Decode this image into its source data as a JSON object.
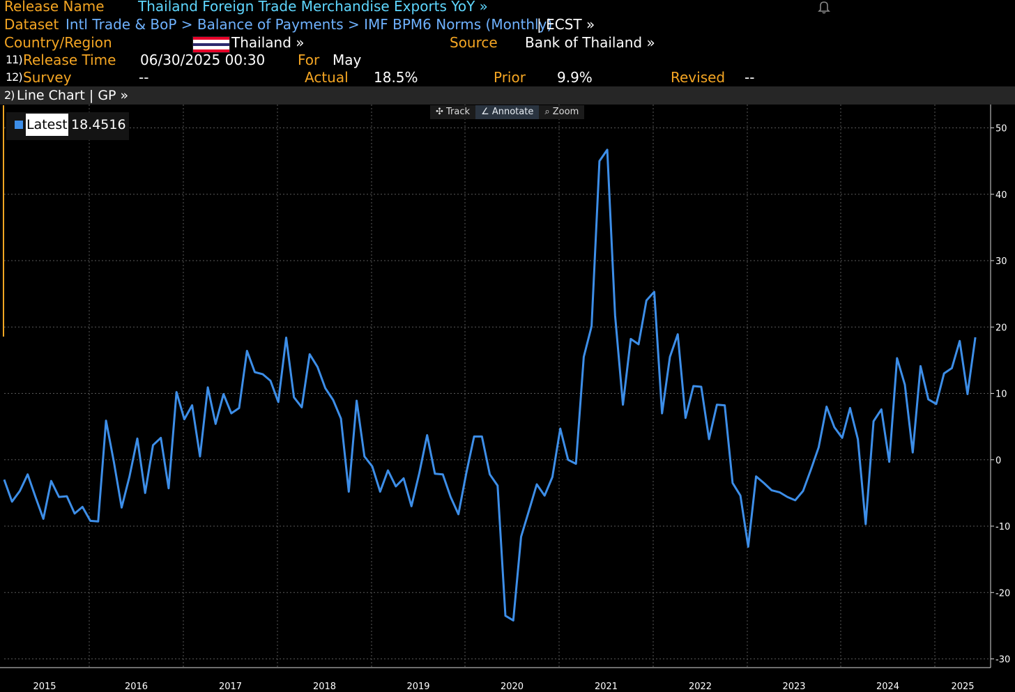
{
  "header": {
    "release_name_label": "Release Name",
    "release_name": "Thailand Foreign Trade Merchandise Exports YoY »",
    "dataset_label": "Dataset",
    "dataset_path": "Intl Trade & BoP > Balance of Payments > IMF BPM6 Norms (Monthly)",
    "dataset_suffix": "| ECST »",
    "country_label": "Country/Region",
    "country": "Thailand »",
    "source_label": "Source",
    "source": "Bank of Thailand »",
    "release_time_num": "11)",
    "release_time_label": "Release Time",
    "release_time": "06/30/2025 00:30",
    "for_label": "For",
    "for_value": "May",
    "survey_num": "12)",
    "survey_label": "Survey",
    "survey_value": "--",
    "actual_label": "Actual",
    "actual_value": "18.5%",
    "prior_label": "Prior",
    "prior_value": "9.9%",
    "revised_label": "Revised",
    "revised_value": "--"
  },
  "toolbar": {
    "num": "2)",
    "label": "Line Chart | GP »"
  },
  "tools": {
    "track": "Track",
    "annotate": "Annotate",
    "zoom": "Zoom"
  },
  "legend": {
    "label": "Latest",
    "value": "18.4516"
  },
  "colors": {
    "line": "#3d8ee8",
    "accent": "#f5a623",
    "flag_red": "#e8002a",
    "flag_blue": "#2d2a4a"
  },
  "chart_data": {
    "type": "line",
    "series": [
      {
        "name": "Latest",
        "start": "2015-01",
        "values": [
          -3,
          -6.3,
          -4.7,
          -2.2,
          -5.6,
          -8.9,
          -3.2,
          -5.6,
          -5.5,
          -8.1,
          -7.1,
          -9.2,
          -9.3,
          5.9,
          -0.3,
          -7.2,
          -2.5,
          3.2,
          -5,
          2.2,
          3.3,
          -4.3,
          10.2,
          6.1,
          8.2,
          0.5,
          10.9,
          5.4,
          9.9,
          7,
          7.8,
          16.4,
          13.2,
          12.9,
          11.9,
          8.7,
          18.4,
          9.4,
          7.9,
          15.9,
          14,
          10.8,
          9,
          6.2,
          -4.8,
          8.9,
          0.5,
          -1,
          -4.8,
          -1.6,
          -4,
          -2.8,
          -7,
          -2,
          3.7,
          -2.1,
          -2.2,
          -5.6,
          -8.2,
          -2,
          3.5,
          3.5,
          -2.2,
          -3.9,
          -23.5,
          -24.2,
          -11.6,
          -7.7,
          -3.7,
          -5.4,
          -2.6,
          4.7,
          0,
          -0.6,
          15.5,
          20.1,
          45,
          46.7,
          21.8,
          8.3,
          18.2,
          17.4,
          24,
          25.3,
          7,
          15.5,
          18.9,
          6.3,
          11.1,
          11,
          3.1,
          8.3,
          8.2,
          -3.5,
          -5.4,
          -13.1,
          -2.5,
          -3.5,
          -4.6,
          -4.9,
          -5.6,
          -6.1,
          -4.7,
          -1.5,
          1.9,
          8,
          4.9,
          3.3,
          7.8,
          3.1,
          -9.7,
          5.8,
          7.6,
          -0.3,
          15.3,
          11.3,
          1.1,
          14.1,
          9.1,
          8.4,
          13,
          13.8,
          17.9,
          9.9,
          18.4516
        ]
      }
    ],
    "x_ticks": [
      "2015",
      "2016",
      "2017",
      "2018",
      "2019",
      "2020",
      "2021",
      "2022",
      "2023",
      "2024",
      "2025"
    ],
    "y_ticks": [
      50,
      40,
      30,
      20,
      10,
      0,
      -10,
      -20,
      -30
    ],
    "ylim": [
      -30,
      50
    ],
    "grid": true,
    "legend_position": "top-left"
  }
}
